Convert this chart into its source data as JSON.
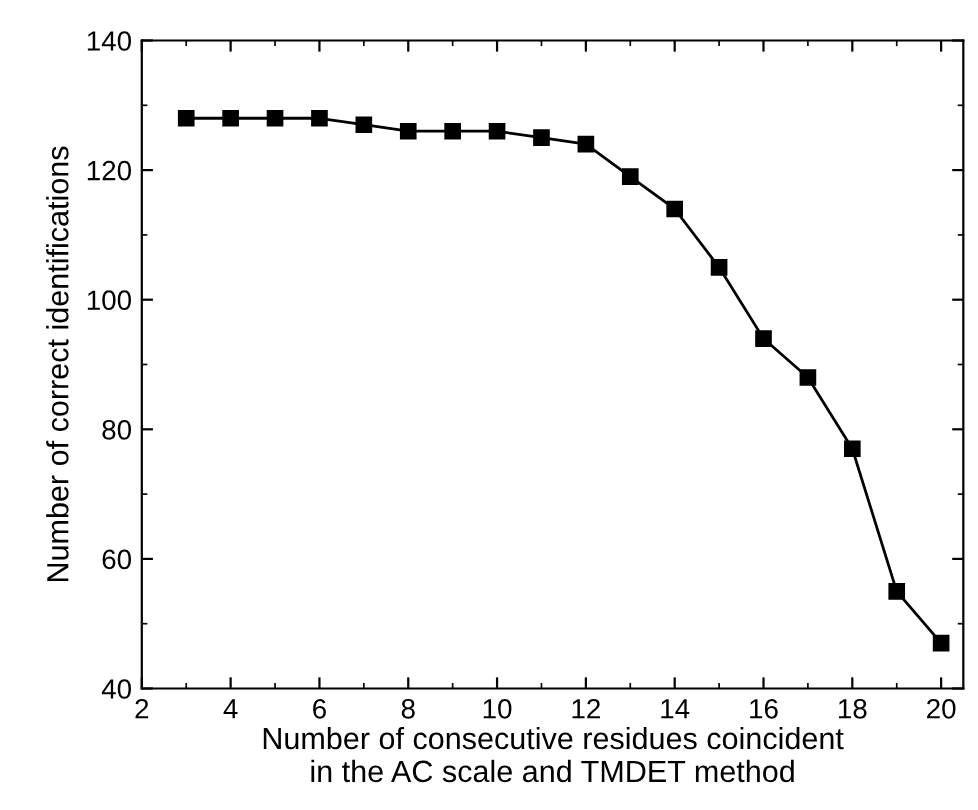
{
  "chart_data": {
    "type": "line",
    "xlabel": "Number of consecutive residues coincident\nin the AC scale and TMDET method",
    "ylabel": "Number of correct identifications",
    "x": [
      3,
      4,
      5,
      6,
      7,
      8,
      9,
      10,
      11,
      12,
      13,
      14,
      15,
      16,
      17,
      18,
      19,
      20
    ],
    "series": [
      {
        "color": "#000000",
        "values": [
          128,
          128,
          128,
          128,
          127,
          126,
          126,
          126,
          125,
          124,
          119,
          114,
          105,
          94,
          88,
          77,
          55,
          47
        ]
      }
    ],
    "xlim": [
      2,
      20.5
    ],
    "xticks": [
      2,
      4,
      6,
      8,
      10,
      12,
      14,
      16,
      18,
      20
    ],
    "ylim": [
      40,
      140
    ],
    "yticks": [
      40,
      60,
      80,
      100,
      120,
      140
    ],
    "grid": false,
    "legend": false,
    "marker": "square",
    "line_style": "solid"
  }
}
